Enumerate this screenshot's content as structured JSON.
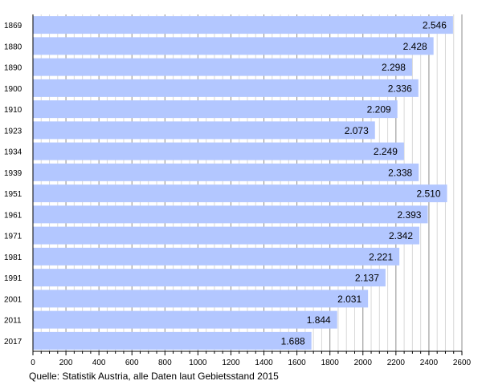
{
  "chart_data": {
    "type": "bar",
    "orientation": "horizontal",
    "categories": [
      "1869",
      "1880",
      "1890",
      "1900",
      "1910",
      "1923",
      "1934",
      "1939",
      "1951",
      "1961",
      "1971",
      "1981",
      "1991",
      "2001",
      "2011",
      "2017"
    ],
    "values": [
      2546,
      2428,
      2298,
      2336,
      2209,
      2073,
      2249,
      2338,
      2510,
      2393,
      2342,
      2221,
      2137,
      2031,
      1844,
      1688
    ],
    "value_labels": [
      "2.546",
      "2.428",
      "2.298",
      "2.336",
      "2.209",
      "2.073",
      "2.249",
      "2.338",
      "2.510",
      "2.393",
      "2.342",
      "2.221",
      "2.137",
      "2.031",
      "1.844",
      "1.688"
    ],
    "x_ticks": [
      0,
      200,
      400,
      600,
      800,
      1000,
      1200,
      1400,
      1600,
      1800,
      2000,
      2200,
      2400,
      2600
    ],
    "xlim": [
      0,
      2600
    ],
    "grid": true,
    "bar_color": "#b3c7ff",
    "grid_major_color": "#8c8c8c",
    "grid_minor_color": "#d9d9d9",
    "title": "",
    "xlabel": "",
    "ylabel": ""
  },
  "source_note": "Quelle: Statistik Austria, alle Daten laut Gebietsstand 2015"
}
